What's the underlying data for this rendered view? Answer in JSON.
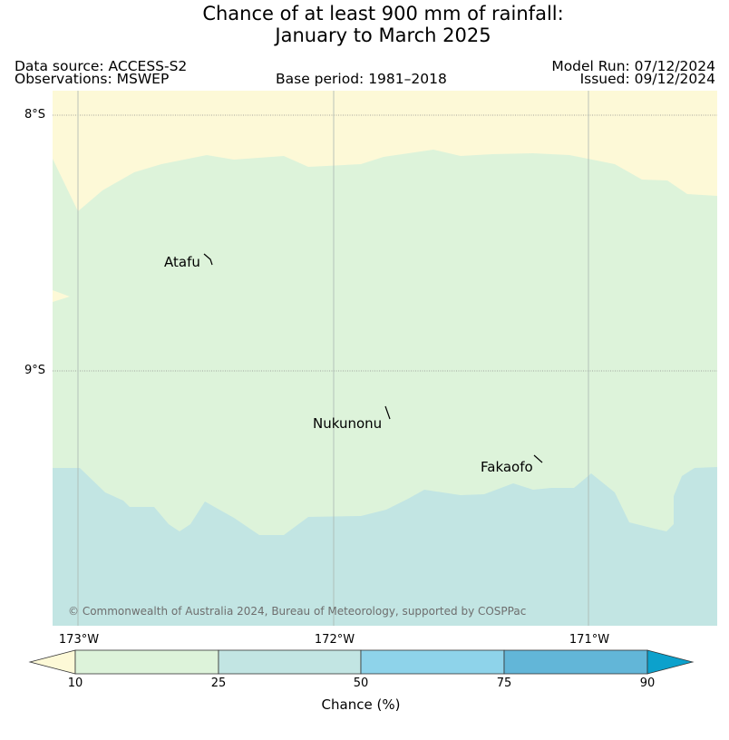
{
  "title": {
    "line1": "Chance of at least 900 mm of rainfall:",
    "line2": "January to March 2025"
  },
  "header": {
    "data_source": "Data source: ACCESS-S2",
    "observations": "Observations: MSWEP",
    "base_period": "Base period: 1981–2018",
    "model_run": "Model Run: 07/12/2024",
    "issued": "Issued: 09/12/2024"
  },
  "map": {
    "lat_labels": [
      "8°S",
      "9°S"
    ],
    "lon_labels": [
      "173°W",
      "172°W",
      "171°W"
    ],
    "places": [
      "Atafu",
      "Nukunonu",
      "Fakaofo"
    ],
    "credit": "© Commonwealth of Australia 2024, Bureau of Meteorology, supported by COSPPac",
    "colors": {
      "below_10": "#fdf9d7",
      "c10_25": "#ddf3da",
      "c25_50": "#c2e5e3",
      "c50_75": "#8ed3ea",
      "c75_90": "#62b6d8",
      "above_90": "#0ca1cc"
    }
  },
  "colorbar": {
    "ticks": [
      "10",
      "25",
      "50",
      "75",
      "90"
    ],
    "label": "Chance (%)",
    "bins": [
      "<10",
      "10–25",
      "25–50",
      "50–75",
      "75–90",
      ">90"
    ]
  }
}
